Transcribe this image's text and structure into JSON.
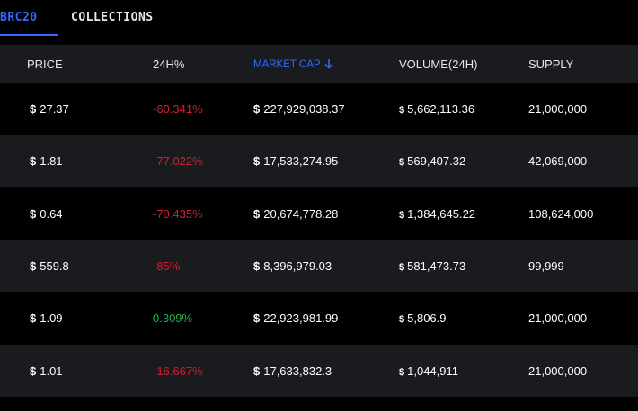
{
  "tabs": [
    {
      "label": "BRC20",
      "active": true
    },
    {
      "label": "COLLECTIONS",
      "active": false
    }
  ],
  "columns": {
    "price": "PRICE",
    "change": "24H%",
    "market_cap": "MARKET CAP",
    "volume": "VOLUME(24H)",
    "supply": "SUPPLY"
  },
  "currency_symbol": "$",
  "colors": {
    "accent": "#2f6bff",
    "negative": "#d1202f",
    "positive": "#20b24a",
    "row_alt": "#1a1b1f"
  },
  "rows": [
    {
      "price": "27.37",
      "change": "-60.341%",
      "change_sign": "neg",
      "market_cap": "227,929,038.37",
      "volume": "5,662,113.36",
      "supply": "21,000,000"
    },
    {
      "price": "1.81",
      "change": "-77.022%",
      "change_sign": "neg",
      "market_cap": "17,533,274.95",
      "volume": "569,407.32",
      "supply": "42,069,000"
    },
    {
      "price": "0.64",
      "change": "-70.435%",
      "change_sign": "neg",
      "market_cap": "20,674,778.28",
      "volume": "1,384,645.22",
      "supply": "108,624,000"
    },
    {
      "price": "559.8",
      "change": "-85%",
      "change_sign": "neg",
      "market_cap": "8,396,979.03",
      "volume": "581,473.73",
      "supply": "99,999"
    },
    {
      "price": "1.09",
      "change": "0.309%",
      "change_sign": "pos",
      "market_cap": "22,923,981.99",
      "volume": "5,806.9",
      "supply": "21,000,000"
    },
    {
      "price": "1.01",
      "change": "-16.667%",
      "change_sign": "neg",
      "market_cap": "17,633,832.3",
      "volume": "1,044,911",
      "supply": "21,000,000"
    }
  ]
}
